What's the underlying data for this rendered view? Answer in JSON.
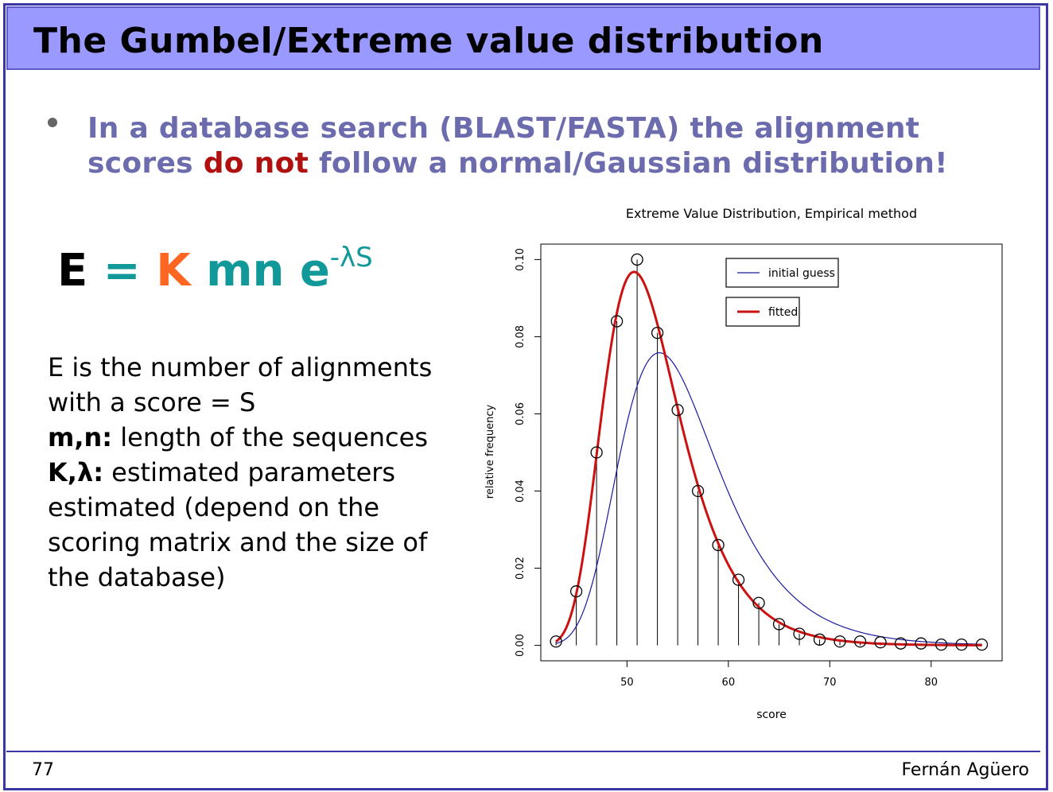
{
  "slide": {
    "title": "The Gumbel/Extreme value distribution",
    "bullet_pre": "In a database search (BLAST/FASTA) the alignment scores ",
    "bullet_highlight": "do not",
    "bullet_post": " follow a normal/Gaussian distribution!",
    "formula": {
      "e": "E",
      "eq": "=",
      "k": "K",
      "mn": "mn",
      "exp": "e",
      "sup": "-λS"
    },
    "desc": {
      "line1": "E is the number of alignments",
      "line2": "with a score = S",
      "mn_label": "m,n:",
      "mn_text": " length of the sequences",
      "k_label": "K,λ:",
      "k_text": " estimated parameters",
      "line5": "estimated (depend on the",
      "line6": "scoring matrix and the size of",
      "line7": "the database)"
    },
    "page_number": "77",
    "author": "Fernán Agüero"
  },
  "chart_data": {
    "type": "scatter",
    "title": "Extreme Value Distribution, Empirical method",
    "xlabel": "score",
    "ylabel": "relative frequency",
    "xlim": [
      41.5,
      87
    ],
    "ylim": [
      -0.004,
      0.104
    ],
    "x_ticks": [
      50,
      60,
      70,
      80
    ],
    "y_ticks": [
      "0.00",
      "0.02",
      "0.04",
      "0.06",
      "0.08",
      "0.10"
    ],
    "x": [
      43,
      45,
      47,
      49,
      51,
      53,
      55,
      57,
      59,
      61,
      63,
      65,
      67,
      69,
      71,
      73,
      75,
      77,
      79,
      81,
      83,
      85
    ],
    "y": [
      0.001,
      0.014,
      0.05,
      0.084,
      0.1,
      0.081,
      0.061,
      0.04,
      0.026,
      0.017,
      0.011,
      0.0055,
      0.003,
      0.0015,
      0.001,
      0.001,
      0.0008,
      0.0005,
      0.0005,
      0.0002,
      0.0002,
      0.0002
    ],
    "series": [
      {
        "name": "initial guess",
        "color": "#1a1aa0",
        "mu": 53.2,
        "beta": 4.85
      },
      {
        "name": "fitted",
        "color": "#cc1111",
        "mu": 50.7,
        "beta": 3.8
      }
    ],
    "legend": "top-right"
  }
}
